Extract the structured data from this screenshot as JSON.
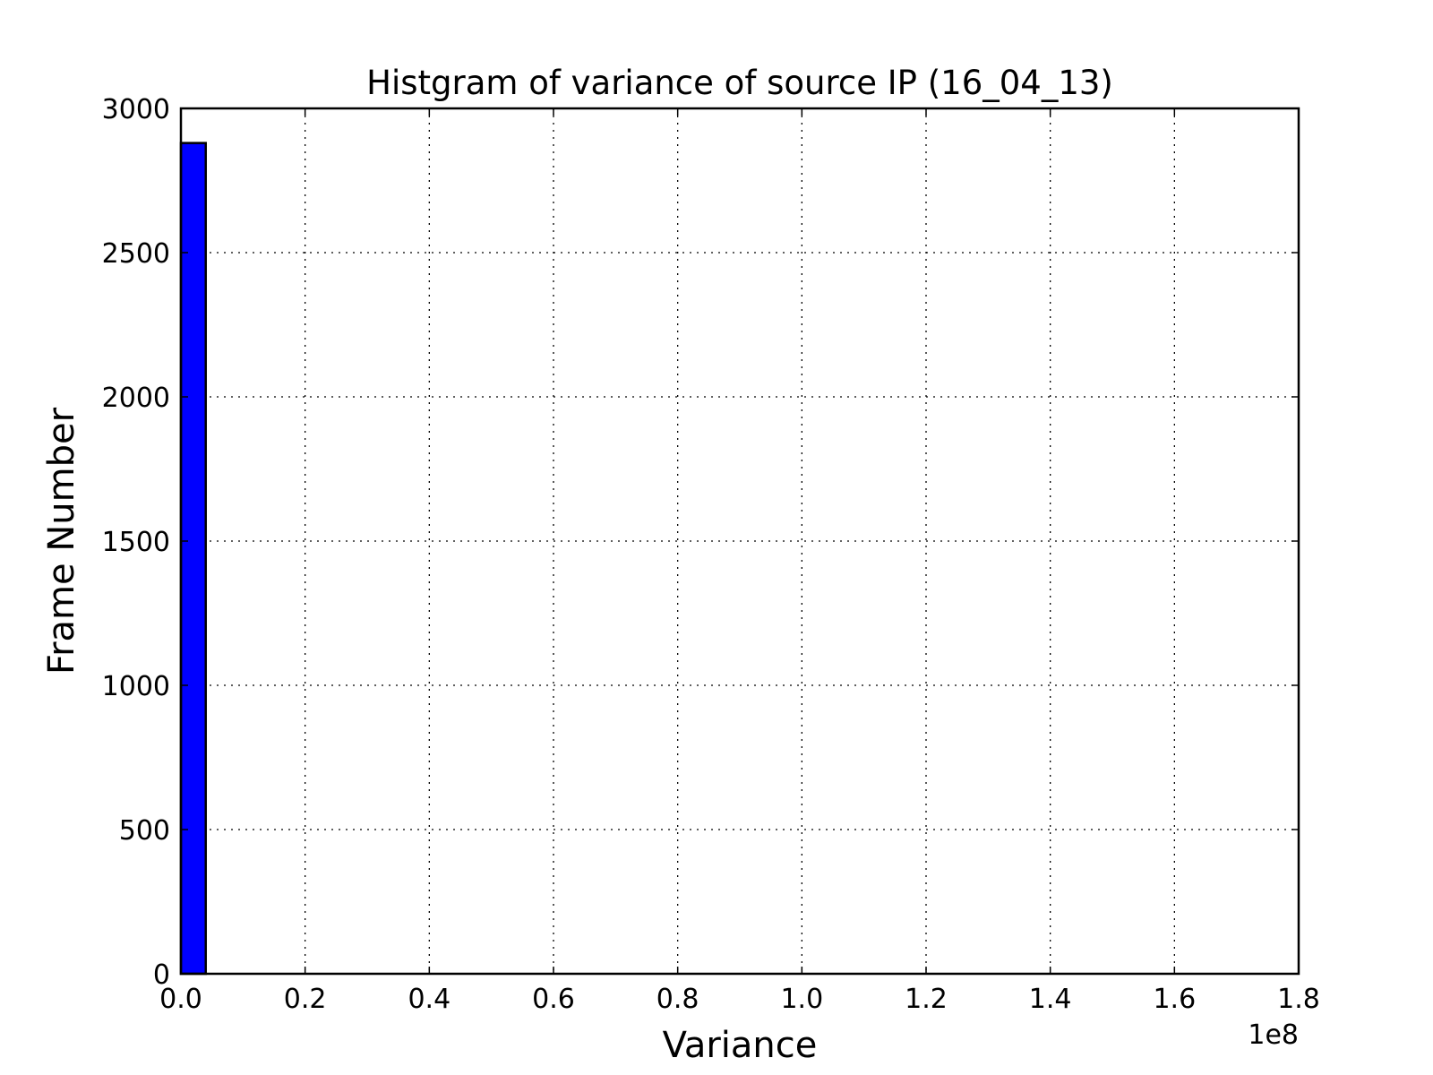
{
  "chart_data": {
    "type": "bar",
    "title": "Histgram of variance of source IP (16_04_13)",
    "xlabel": "Variance",
    "ylabel": "Frame Number",
    "x_offset_label": "1e8",
    "xlim": [
      0,
      1.8
    ],
    "ylim": [
      0,
      3000
    ],
    "x_ticks": [
      0.0,
      0.2,
      0.4,
      0.6,
      0.8,
      1.0,
      1.2,
      1.4,
      1.6,
      1.8
    ],
    "x_tick_labels": [
      "0.0",
      "0.2",
      "0.4",
      "0.6",
      "0.8",
      "1.0",
      "1.2",
      "1.4",
      "1.6",
      "1.8"
    ],
    "y_ticks": [
      0,
      500,
      1000,
      1500,
      2000,
      2500,
      3000
    ],
    "y_tick_labels": [
      "0",
      "500",
      "1000",
      "1500",
      "2000",
      "2500",
      "3000"
    ],
    "grid": true,
    "bar_color": "#0000ff",
    "bins": [
      {
        "start": 0.0,
        "end": 0.04,
        "count": 2880
      }
    ]
  }
}
